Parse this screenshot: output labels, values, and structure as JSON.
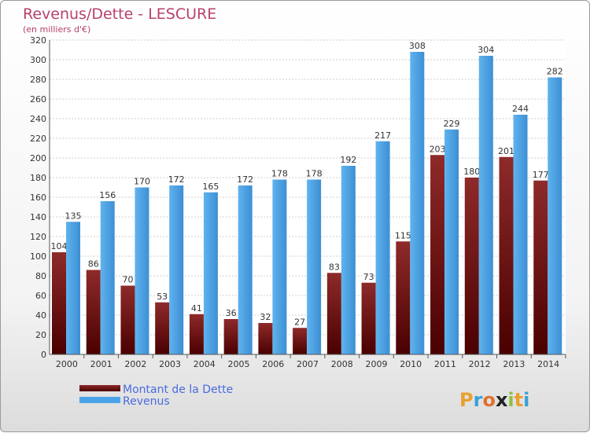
{
  "chart_data": {
    "type": "bar",
    "title": "Revenus/Dette - LESCURE",
    "subtitle": "(en milliers d'€)",
    "categories": [
      "2000",
      "2001",
      "2002",
      "2003",
      "2004",
      "2005",
      "2006",
      "2007",
      "2008",
      "2009",
      "2010",
      "2011",
      "2012",
      "2013",
      "2014"
    ],
    "series": [
      {
        "name": "Montant de la Dette",
        "color": "#7a1a1a",
        "values": [
          104,
          86,
          70,
          53,
          41,
          36,
          32,
          27,
          83,
          73,
          115,
          203,
          180,
          201,
          177
        ]
      },
      {
        "name": "Revenus",
        "color": "#4aa3e6",
        "values": [
          135,
          156,
          170,
          172,
          165,
          172,
          178,
          178,
          192,
          217,
          308,
          229,
          304,
          244,
          282
        ]
      }
    ],
    "ylim": [
      0,
      320
    ],
    "yticks": [
      0,
      20,
      40,
      60,
      80,
      100,
      120,
      140,
      160,
      180,
      200,
      220,
      240,
      260,
      280,
      300,
      320
    ],
    "grid": true,
    "legend_position": "bottom-left"
  },
  "logo": {
    "text": "Proxiti"
  }
}
